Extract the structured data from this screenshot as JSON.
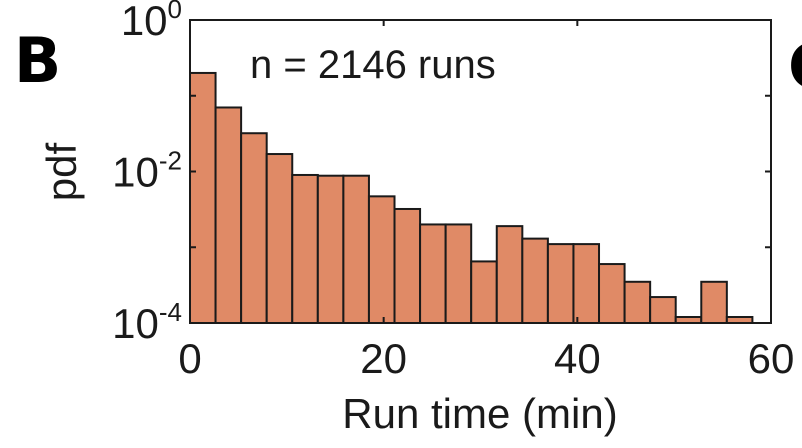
{
  "panel": {
    "letter": "B",
    "next_letter_fragment": "C"
  },
  "chart_data": {
    "type": "bar",
    "subtype": "histogram",
    "title": "",
    "annotation": "n = 2146 runs",
    "xlabel": "Run time (min)",
    "ylabel": "pdf",
    "xlim": [
      0,
      60
    ],
    "ylim": [
      0.0001,
      1
    ],
    "yscale": "log",
    "grid": false,
    "legend": "none",
    "bar_color": "#e08a66",
    "edge_color": "#1a1a1a",
    "bin_width": 2.64,
    "x_ticks": [
      0,
      20,
      40,
      60
    ],
    "x_tick_labels": [
      "0",
      "20",
      "40",
      "60"
    ],
    "y_ticks": [
      1,
      0.01,
      0.0001
    ],
    "y_tick_labels": [
      {
        "base": "10",
        "exp": "0"
      },
      {
        "base": "10",
        "exp": "-2"
      },
      {
        "base": "10",
        "exp": "-4"
      }
    ],
    "bin_starts": [
      0,
      2.64,
      5.28,
      7.92,
      10.56,
      13.2,
      15.84,
      18.48,
      21.12,
      23.76,
      26.4,
      29.04,
      31.68,
      34.32,
      36.96,
      39.6,
      42.24,
      44.88,
      47.52,
      50.16,
      52.8,
      55.44,
      58.08
    ],
    "values": [
      0.2,
      0.07,
      0.032,
      0.017,
      0.009,
      0.0088,
      0.0088,
      0.0047,
      0.0032,
      0.002,
      0.002,
      0.00065,
      0.0019,
      0.0013,
      0.0011,
      0.0011,
      0.0006,
      0.00035,
      0.00022,
      0.00012,
      0.00035,
      0.00012,
      0
    ]
  }
}
